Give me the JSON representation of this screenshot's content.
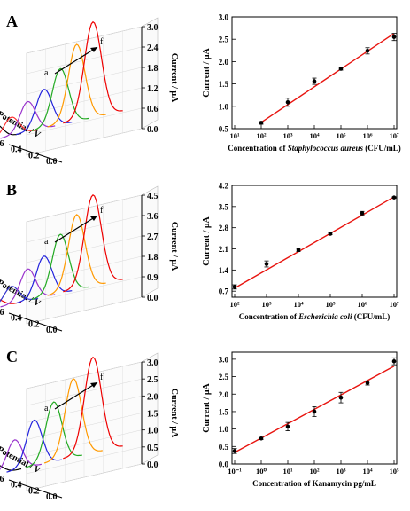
{
  "panels": [
    {
      "letter": "A",
      "waterfall": {
        "z_ticks": [
          "3.0",
          "2.4",
          "1.8",
          "1.2",
          "0.6",
          "0.0"
        ],
        "z_label": "Current / μA",
        "x_ticks": [
          "0.6",
          "0.4",
          "0.2",
          "0.0"
        ],
        "x_label": "Potential / V",
        "arrow_start": "a",
        "arrow_end": "f",
        "colors": [
          "#000000",
          "#ff3333",
          "#9933cc",
          "#2222dd",
          "#22aa22",
          "#ff9900",
          "#ee0000"
        ],
        "peak_heights_uA": [
          0.45,
          0.55,
          0.9,
          1.15,
          1.65,
          2.25,
          2.8
        ]
      },
      "chart_data": {
        "type": "scatter",
        "xscale": "log",
        "x_tick_labels": [
          "10¹",
          "10²",
          "10³",
          "10⁴",
          "10⁵",
          "10⁶",
          "10⁷"
        ],
        "y_tick_labels": [
          "0.5",
          "1.0",
          "1.5",
          "2.0",
          "2.5",
          "3.0"
        ],
        "ylim": [
          0.5,
          3.0
        ],
        "ylabel": "Current / μA",
        "xlabel_prefix": "Concentration of ",
        "xlabel_italic": "Staphylococcus aureus",
        "xlabel_suffix": " (CFU/mL)",
        "x_log10": [
          2,
          3,
          4,
          5,
          6,
          7
        ],
        "y": [
          0.63,
          1.09,
          1.56,
          1.84,
          2.24,
          2.55
        ],
        "yerr": [
          0.03,
          0.09,
          0.07,
          0.03,
          0.07,
          0.08
        ],
        "fit_line": {
          "x_log10": [
            2,
            7
          ],
          "y": [
            0.64,
            2.63
          ]
        }
      }
    },
    {
      "letter": "B",
      "waterfall": {
        "z_ticks": [
          "4.5",
          "3.6",
          "2.7",
          "1.8",
          "0.9",
          "0.0"
        ],
        "z_label": "Current / μA",
        "x_ticks": [
          "0.6",
          "0.4",
          "0.2",
          "0.0"
        ],
        "x_label": "Potential / V",
        "arrow_start": "a",
        "arrow_end": "f",
        "colors": [
          "#ee0000",
          "#3333cc",
          "#9933cc",
          "#2222dd",
          "#22aa22",
          "#ff9900",
          "#ee0000"
        ],
        "peak_heights_uA": [
          0.4,
          0.8,
          1.4,
          1.8,
          2.6,
          3.3,
          4.0
        ]
      },
      "chart_data": {
        "type": "scatter",
        "xscale": "log",
        "x_tick_labels": [
          "10²",
          "10³",
          "10⁴",
          "10⁵",
          "10⁶",
          "10⁷"
        ],
        "y_tick_labels": [
          "0.7",
          "1.4",
          "2.1",
          "2.8",
          "3.5",
          "4.2"
        ],
        "ylim": [
          0.5,
          4.2
        ],
        "ylabel": "Current / μA",
        "xlabel_prefix": "Concentration of ",
        "xlabel_italic": "Escherichia coli",
        "xlabel_suffix": " (CFU/mL)",
        "x_log10": [
          2,
          3,
          4,
          5,
          6,
          7
        ],
        "y": [
          0.84,
          1.6,
          2.06,
          2.6,
          3.28,
          3.8
        ],
        "yerr": [
          0.07,
          0.1,
          0.05,
          0.03,
          0.06,
          0.02
        ],
        "fit_line": {
          "x_log10": [
            2,
            7
          ],
          "y": [
            0.8,
            3.82
          ]
        }
      }
    },
    {
      "letter": "C",
      "waterfall": {
        "z_ticks": [
          "3.0",
          "2.5",
          "2.0",
          "1.5",
          "1.0",
          "0.5",
          "0.0"
        ],
        "z_label": "Current / μA",
        "x_ticks": [
          "0.6",
          "0.4",
          "0.2",
          "0.0"
        ],
        "x_label": "Potential / V",
        "arrow_start": "a",
        "arrow_end": "f",
        "colors": [
          "#000000",
          "#9933cc",
          "#2222dd",
          "#22aa22",
          "#ff9900",
          "#ee0000"
        ],
        "peak_heights_uA": [
          0.3,
          0.9,
          1.35,
          1.75,
          2.3,
          2.8
        ]
      },
      "chart_data": {
        "type": "scatter",
        "xscale": "log",
        "x_tick_labels": [
          "10⁻¹",
          "10⁰",
          "10¹",
          "10²",
          "10³",
          "10⁴",
          "10⁵"
        ],
        "y_tick_labels": [
          "0.0",
          "0.5",
          "1.0",
          "1.5",
          "2.0",
          "2.5",
          "3.0"
        ],
        "ylim": [
          0.0,
          3.2
        ],
        "ylabel": "Current / μA",
        "xlabel_prefix": "Concentration of Kanamycin pg/mL",
        "xlabel_italic": "",
        "xlabel_suffix": "",
        "x_log10": [
          -1,
          0,
          1,
          2,
          3,
          4,
          5
        ],
        "y": [
          0.37,
          0.73,
          1.07,
          1.5,
          1.9,
          2.32,
          2.94
        ],
        "yerr": [
          0.07,
          0.03,
          0.12,
          0.14,
          0.15,
          0.06,
          0.1
        ],
        "fit_line": {
          "x_log10": [
            -1,
            5
          ],
          "y": [
            0.33,
            2.8
          ]
        }
      }
    }
  ]
}
